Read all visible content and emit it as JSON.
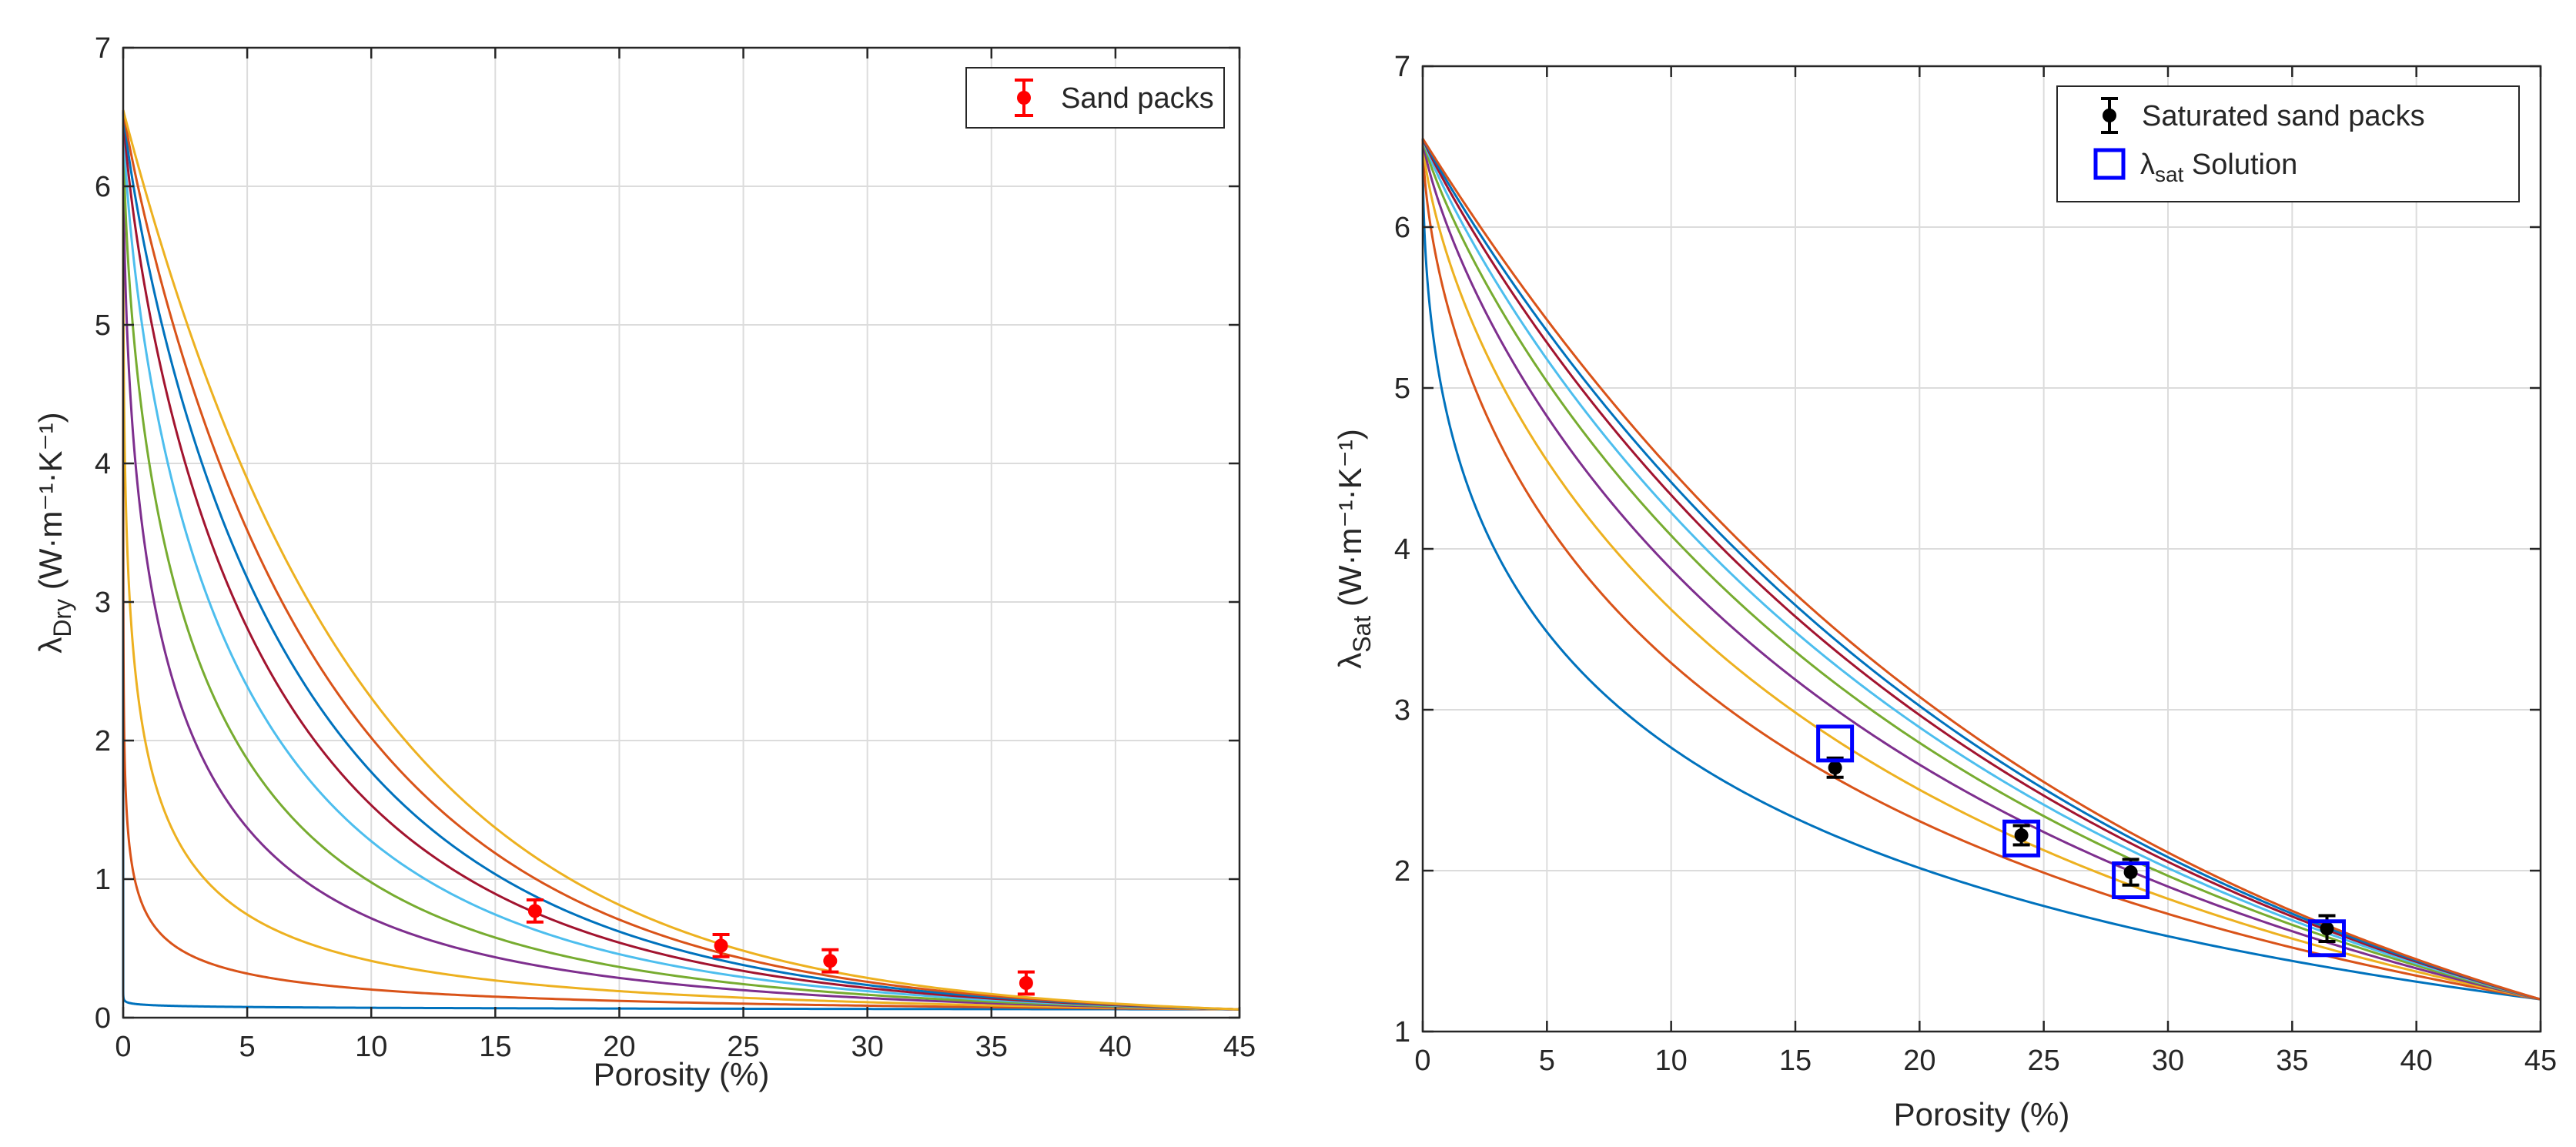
{
  "chart_data": [
    {
      "type": "line",
      "title": "",
      "xlabel": "Porosity (%)",
      "ylabel": {
        "symbol": "λ",
        "sub": "Dry",
        "units": " (W·m⁻¹·K⁻¹)"
      },
      "xlim": [
        0,
        45
      ],
      "ylim": [
        0,
        7
      ],
      "xticks": [
        "0",
        "5",
        "10",
        "15",
        "20",
        "25",
        "30",
        "35",
        "40",
        "45"
      ],
      "yticks": [
        "0",
        "1",
        "2",
        "3",
        "4",
        "5",
        "6",
        "7"
      ],
      "grid": true,
      "legend_placement": "top-right",
      "model": {
        "lambda_solid": 6.55,
        "lambda_fluid": 0.06,
        "phi_max": 45
      },
      "curve_exponents": [
        0.025,
        0.2,
        0.35,
        0.5,
        0.6,
        0.7,
        0.78,
        0.85,
        0.92,
        1.0
      ],
      "curve_colors": [
        "#0072BD",
        "#D95319",
        "#EDB120",
        "#7E2F8E",
        "#77AC30",
        "#4DBEEE",
        "#A2142F",
        "#0072BD",
        "#D95319",
        "#EDB120",
        "#7E2F8E"
      ],
      "curve_colors_note": "",
      "measured": [
        {
          "porosity": 16.6,
          "value": 0.77,
          "error": 0.08
        },
        {
          "porosity": 24.1,
          "value": 0.52,
          "error": 0.08
        },
        {
          "porosity": 28.5,
          "value": 0.41,
          "error": 0.08
        },
        {
          "porosity": 36.4,
          "value": 0.25,
          "error": 0.08
        }
      ],
      "legend": [
        {
          "label": "Sand packs",
          "marker": "errorbar-dot",
          "color": "#FF0000"
        }
      ]
    },
    {
      "type": "line",
      "title": "",
      "xlabel": "Porosity (%)",
      "ylabel": {
        "symbol": "λ",
        "sub": "Sat",
        "units": " (W·m⁻¹·K⁻¹)"
      },
      "xlim": [
        0,
        45
      ],
      "ylim": [
        1,
        7
      ],
      "xticks": [
        "0",
        "5",
        "10",
        "15",
        "20",
        "25",
        "30",
        "35",
        "40",
        "45"
      ],
      "yticks": [
        "1",
        "2",
        "3",
        "4",
        "5",
        "6",
        "7"
      ],
      "grid": true,
      "legend_placement": "top-right",
      "model": {
        "lambda_solid": 6.55,
        "lambda_fluid": 1.2,
        "phi_max": 45
      },
      "curve_exponents": [
        0.45,
        0.6,
        0.7,
        0.78,
        0.85,
        0.9,
        0.94,
        0.97,
        1.0
      ],
      "curve_colors": [
        "#0072BD",
        "#D95319",
        "#EDB120",
        "#7E2F8E",
        "#77AC30",
        "#4DBEEE",
        "#A2142F",
        "#0072BD",
        "#D95319",
        "#EDB120",
        "#7E2F8E"
      ],
      "measured": [
        {
          "porosity": 16.6,
          "value": 2.64,
          "error": 0.06
        },
        {
          "porosity": 24.1,
          "value": 2.22,
          "error": 0.06
        },
        {
          "porosity": 28.5,
          "value": 1.99,
          "error": 0.08
        },
        {
          "porosity": 36.4,
          "value": 1.64,
          "error": 0.08
        }
      ],
      "solution": [
        {
          "porosity": 16.6,
          "value": 2.79
        },
        {
          "porosity": 24.1,
          "value": 2.2
        },
        {
          "porosity": 28.5,
          "value": 1.94
        },
        {
          "porosity": 36.4,
          "value": 1.58
        }
      ],
      "legend": [
        {
          "label": "Saturated sand packs",
          "marker": "errorbar-dot",
          "color": "#000000"
        },
        {
          "label_symbol": "λ",
          "label_sub": "sat",
          "label": " Solution",
          "marker": "square",
          "color": "#0000FF"
        }
      ]
    }
  ]
}
